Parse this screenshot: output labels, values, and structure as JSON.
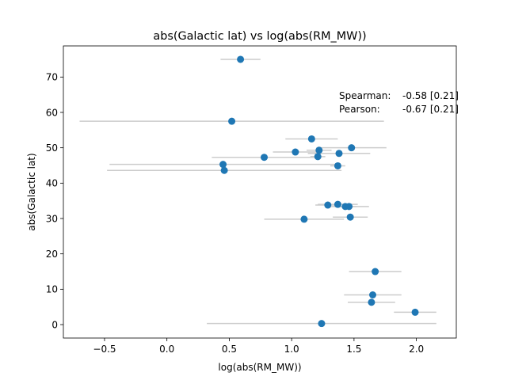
{
  "chart_data": {
    "type": "scatter",
    "title": "abs(Galactic lat) vs log(abs(RM_MW))",
    "xlabel": "log(abs(RM_MW))",
    "ylabel": "abs(Galactic lat)",
    "xlim": [
      -0.83,
      2.32
    ],
    "ylim": [
      -3.8,
      78.8
    ],
    "xticks": [
      -0.5,
      0.0,
      0.5,
      1.0,
      1.5,
      2.0
    ],
    "xtick_labels": [
      "−0.5",
      "0.0",
      "0.5",
      "1.0",
      "1.5",
      "2.0"
    ],
    "yticks": [
      0,
      10,
      20,
      30,
      40,
      50,
      60,
      70
    ],
    "ytick_labels": [
      "0",
      "10",
      "20",
      "30",
      "40",
      "50",
      "60",
      "70"
    ],
    "grid": false,
    "marker_color": "#1f77b4",
    "errorbar_color": "#cccccc",
    "points": [
      {
        "x": 0.59,
        "y": 75.0,
        "xerr": 0.16
      },
      {
        "x": 0.52,
        "y": 57.5,
        "xerr": 1.22
      },
      {
        "x": 1.16,
        "y": 52.5,
        "xerr": 0.21
      },
      {
        "x": 1.48,
        "y": 50.0,
        "xerr": 0.28
      },
      {
        "x": 1.22,
        "y": 49.3,
        "xerr": 0.1
      },
      {
        "x": 1.03,
        "y": 48.8,
        "xerr": 0.18
      },
      {
        "x": 1.38,
        "y": 48.4,
        "xerr": 0.25
      },
      {
        "x": 1.21,
        "y": 47.5,
        "xerr": 0.06
      },
      {
        "x": 0.78,
        "y": 47.3,
        "xerr": 0.42
      },
      {
        "x": 0.45,
        "y": 45.3,
        "xerr": 0.91
      },
      {
        "x": 1.37,
        "y": 44.9,
        "xerr": 0.06
      },
      {
        "x": 0.46,
        "y": 43.6,
        "xerr": 0.94
      },
      {
        "x": 1.29,
        "y": 33.8,
        "xerr": 0.1
      },
      {
        "x": 1.37,
        "y": 34.0,
        "xerr": 0.16
      },
      {
        "x": 1.43,
        "y": 33.4,
        "xerr": 0.09
      },
      {
        "x": 1.46,
        "y": 33.4,
        "xerr": 0.16
      },
      {
        "x": 1.47,
        "y": 30.4,
        "xerr": 0.14
      },
      {
        "x": 1.1,
        "y": 29.8,
        "xerr": 0.32
      },
      {
        "x": 1.67,
        "y": 15.0,
        "xerr": 0.21
      },
      {
        "x": 1.65,
        "y": 8.4,
        "xerr": 0.23
      },
      {
        "x": 1.64,
        "y": 6.3,
        "xerr": 0.19
      },
      {
        "x": 1.99,
        "y": 3.5,
        "xerr": 0.17
      },
      {
        "x": 1.24,
        "y": 0.3,
        "xerr": 0.92
      }
    ],
    "annotations": [
      {
        "label": "Spearman:",
        "value": "-0.58 [0.21]"
      },
      {
        "label": "Pearson:",
        "value": "-0.67 [0.21]"
      }
    ]
  }
}
